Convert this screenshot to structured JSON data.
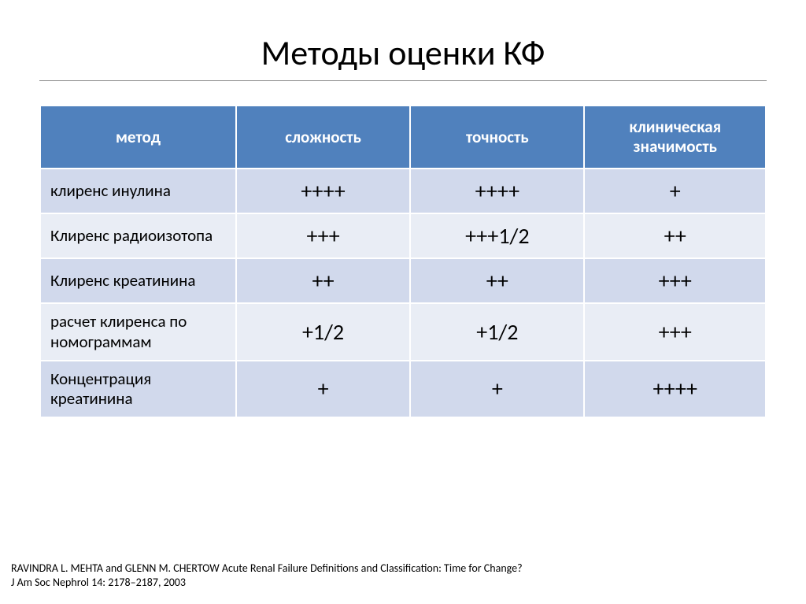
{
  "title": "Методы оценки КФ",
  "table": {
    "columns": [
      "метод",
      "сложность",
      "точность",
      "клиническая значимость"
    ],
    "rows": [
      {
        "method": "клиренс инулина",
        "complexity": "++++",
        "accuracy": "++++",
        "clinical": "+"
      },
      {
        "method": "Клиренс радиоизотопа",
        "complexity": "+++",
        "accuracy": "+++1/2",
        "clinical": "++"
      },
      {
        "method": "Клиренс креатинина",
        "complexity": "++",
        "accuracy": "++",
        "clinical": "+++"
      },
      {
        "method": "расчет клиренса по номограммам",
        "complexity": "+1/2",
        "accuracy": "+1/2",
        "clinical": "+++"
      },
      {
        "method": "Концентрация креатинина",
        "complexity": "+",
        "accuracy": "+",
        "clinical": "++++"
      }
    ],
    "header_bg": "#5081bd",
    "header_fg": "#ffffff",
    "row_odd_bg": "#d1d9ec",
    "row_even_bg": "#e9edf5",
    "border_color": "#ffffff",
    "header_fontsize": 21,
    "method_fontsize": 21,
    "value_fontsize": 28
  },
  "footer": {
    "line1": "RAVINDRA L. MEHTA and GLENN M. CHERTOW Acute Renal Failure Definitions and Classification: Time for Change?",
    "line2": "J Am Soc Nephrol 14: 2178–2187, 2003"
  },
  "colors": {
    "background": "#ffffff",
    "text": "#000000",
    "underline": "#888888"
  }
}
